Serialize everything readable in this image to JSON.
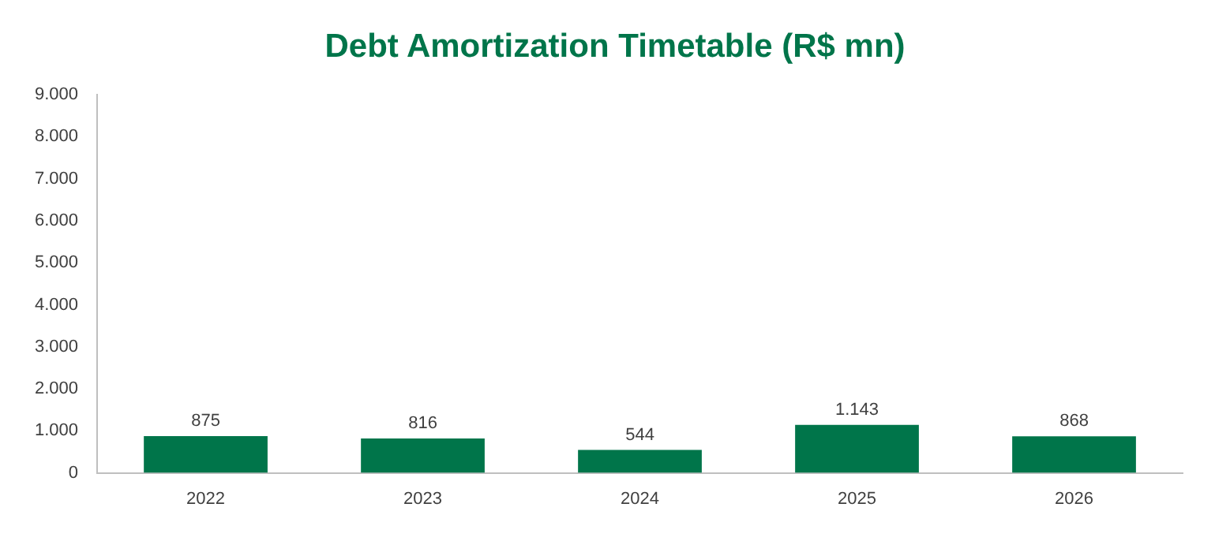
{
  "chart_data": {
    "type": "bar",
    "title": "Debt Amortization Timetable (R$ mn)",
    "categories": [
      "2022",
      "2023",
      "2024",
      "2025",
      "2026"
    ],
    "values": [
      875,
      816,
      544,
      1143,
      868
    ],
    "value_labels": [
      "875",
      "816",
      "544",
      "1.143",
      "868"
    ],
    "color": "#00754a",
    "ylim": [
      0,
      9000
    ],
    "yticks": [
      {
        "value": 0,
        "label": "0"
      },
      {
        "value": 1000,
        "label": "1.000"
      },
      {
        "value": 2000,
        "label": "2.000"
      },
      {
        "value": 3000,
        "label": "3.000"
      },
      {
        "value": 4000,
        "label": "4.000"
      },
      {
        "value": 5000,
        "label": "5.000"
      },
      {
        "value": 6000,
        "label": "6.000"
      },
      {
        "value": 7000,
        "label": "7.000"
      },
      {
        "value": 8000,
        "label": "8.000"
      },
      {
        "value": 9000,
        "label": "9.000"
      }
    ],
    "grid": false,
    "legend": false
  }
}
